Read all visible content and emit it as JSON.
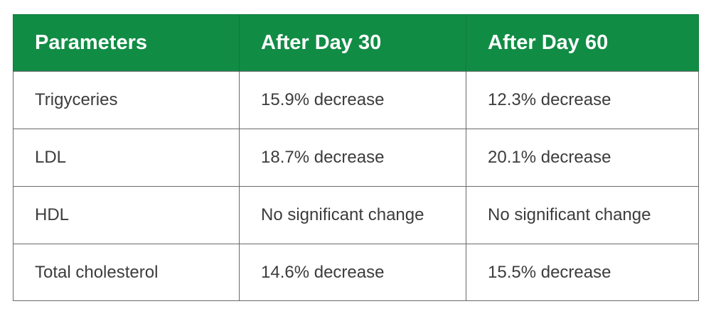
{
  "table": {
    "headers": [
      "Parameters",
      "After Day 30",
      "After Day 60"
    ],
    "rows": [
      [
        "Trigyceries",
        "15.9% decrease",
        "12.3% decrease"
      ],
      [
        "LDL",
        "18.7% decrease",
        "20.1% decrease"
      ],
      [
        "HDL",
        "No significant change",
        "No significant change"
      ],
      [
        "Total cholesterol",
        "14.6% decrease",
        "15.5% decrease"
      ]
    ]
  },
  "colors": {
    "header_bg": "#118c45",
    "header_text": "#ffffff",
    "cell_text": "#3c3c3c",
    "border": "#6a6a6a"
  }
}
